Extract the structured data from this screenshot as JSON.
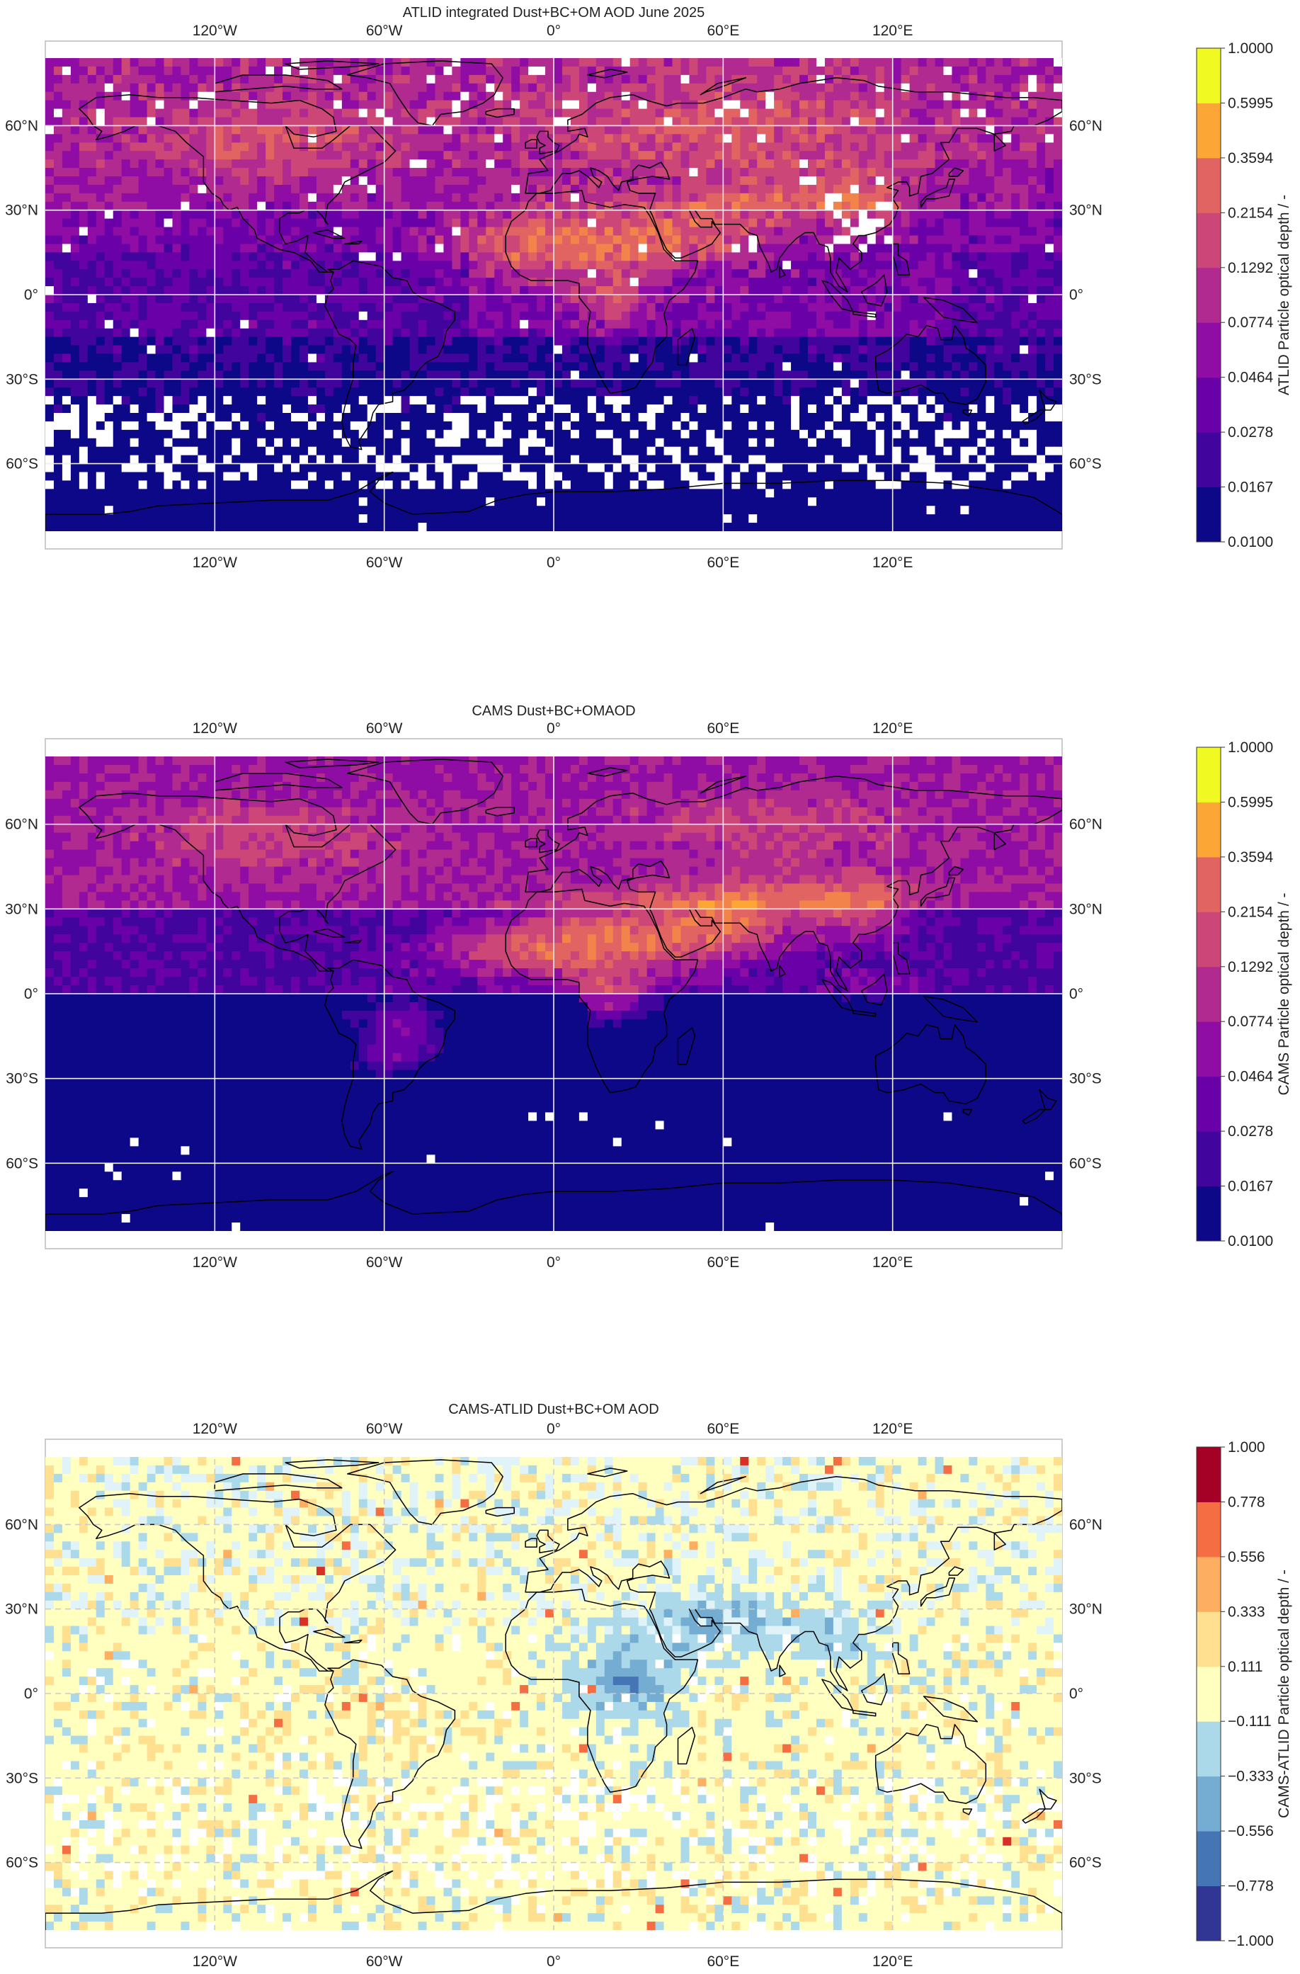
{
  "figure": {
    "description": "Three stacked global maps comparing ATLID and CAMS aerosol optical depth for June 2025"
  },
  "chart_data": [
    {
      "id": "atlid",
      "type": "heatmap",
      "title": "ATLID integrated Dust+BC+OM AOD June 2025",
      "lon_ticks": [
        "120°W",
        "60°W",
        "0°",
        "60°E",
        "120°E"
      ],
      "lon_values": [
        -120,
        -60,
        0,
        60,
        120
      ],
      "lat_ticks": [
        "60°N",
        "30°N",
        "0°",
        "30°S",
        "60°S"
      ],
      "lat_values": [
        60,
        30,
        0,
        -30,
        -60
      ],
      "extent": {
        "lon": [
          -180,
          180
        ],
        "lat": [
          -90,
          90
        ]
      },
      "colorbar": {
        "label": "ATLID Particle optical depth / -",
        "ticks": [
          "0.0100",
          "0.0167",
          "0.0278",
          "0.0464",
          "0.0774",
          "0.1292",
          "0.2154",
          "0.3594",
          "0.5995",
          "1.0000"
        ],
        "colors": [
          "#0d0887",
          "#41049d",
          "#6a00a8",
          "#8f0da4",
          "#b12a90",
          "#cc4778",
          "#e16462",
          "#f2844b",
          "#fca636",
          "#fcce25",
          "#f0f921"
        ]
      },
      "grid": true,
      "grid_style": "solid",
      "background_color": "#6a1aa0"
    },
    {
      "id": "cams",
      "type": "heatmap",
      "title": "CAMS Dust+BC+OMAOD",
      "lon_ticks": [
        "120°W",
        "60°W",
        "0°",
        "60°E",
        "120°E"
      ],
      "lon_values": [
        -120,
        -60,
        0,
        60,
        120
      ],
      "lat_ticks": [
        "60°N",
        "30°N",
        "0°",
        "30°S",
        "60°S"
      ],
      "lat_values": [
        60,
        30,
        0,
        -30,
        -60
      ],
      "extent": {
        "lon": [
          -180,
          180
        ],
        "lat": [
          -90,
          90
        ]
      },
      "colorbar": {
        "label": "CAMS Particle optical depth / -",
        "ticks": [
          "0.0100",
          "0.0167",
          "0.0278",
          "0.0464",
          "0.0774",
          "0.1292",
          "0.2154",
          "0.3594",
          "0.5995",
          "1.0000"
        ],
        "colors": [
          "#0d0887",
          "#41049d",
          "#6a00a8",
          "#8f0da4",
          "#b12a90",
          "#cc4778",
          "#e16462",
          "#f2844b",
          "#fca636",
          "#fcce25",
          "#f0f921"
        ]
      },
      "grid": true,
      "grid_style": "solid",
      "background_color": "#0d0887"
    },
    {
      "id": "diff",
      "type": "heatmap",
      "title": "CAMS-ATLID Dust+BC+OM AOD",
      "lon_ticks": [
        "120°W",
        "60°W",
        "0°",
        "60°E",
        "120°E"
      ],
      "lon_values": [
        -120,
        -60,
        0,
        60,
        120
      ],
      "lat_ticks": [
        "60°N",
        "30°N",
        "0°",
        "30°S",
        "60°S"
      ],
      "lat_values": [
        60,
        30,
        0,
        -30,
        -60
      ],
      "extent": {
        "lon": [
          -180,
          180
        ],
        "lat": [
          -90,
          90
        ]
      },
      "colorbar": {
        "label": "CAMS-ATLID Particle optical depth / -",
        "ticks": [
          "−1.000",
          "−0.778",
          "−0.556",
          "−0.333",
          "−0.111",
          "0.111",
          "0.333",
          "0.556",
          "0.778",
          "1.000"
        ],
        "colors": [
          "#313695",
          "#4575b4",
          "#74add1",
          "#abd9e9",
          "#e0f3f8",
          "#ffffbf",
          "#fee090",
          "#fdae61",
          "#f46d43",
          "#d73027",
          "#a50026"
        ]
      },
      "grid": true,
      "grid_style": "dashed",
      "background_color": "#ffffbf"
    }
  ]
}
